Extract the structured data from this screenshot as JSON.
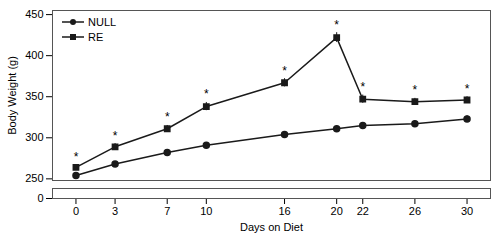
{
  "chart_data": [
    {
      "type": "line",
      "ylabel": "Body Weight (g)",
      "x": [
        0,
        3,
        7,
        10,
        16,
        20,
        22,
        26,
        30
      ],
      "xlim": [
        -1.8,
        31.8
      ],
      "ylim": [
        248,
        455
      ],
      "yticks": [
        250,
        300,
        350,
        400,
        450
      ],
      "tick_labels": "y",
      "legend": "upper left",
      "series": [
        {
          "name": "NULL",
          "color": "#1a1a1a",
          "marker": "circle",
          "values": [
            254,
            268,
            282,
            291,
            304,
            311,
            315,
            317,
            323
          ],
          "errors": [
            3,
            3,
            3,
            3,
            3,
            3,
            3,
            3,
            4
          ]
        },
        {
          "name": "RE",
          "color": "#1a1a1a",
          "marker": "square",
          "values": [
            264,
            289,
            311,
            338,
            367,
            422,
            347,
            344,
            346
          ],
          "errors": [
            3,
            4,
            4,
            5,
            5,
            6,
            5,
            4,
            4
          ]
        }
      ],
      "annotations": [
        {
          "x": 0,
          "y": 267,
          "text": "*"
        },
        {
          "x": 3,
          "y": 293,
          "text": "*"
        },
        {
          "x": 7,
          "y": 315,
          "text": "*"
        },
        {
          "x": 10,
          "y": 343,
          "text": "*"
        },
        {
          "x": 16,
          "y": 372,
          "text": "*"
        },
        {
          "x": 20,
          "y": 428,
          "text": "*"
        },
        {
          "x": 22,
          "y": 352,
          "text": "*"
        },
        {
          "x": 26,
          "y": 348,
          "text": "*"
        },
        {
          "x": 30,
          "y": 350,
          "text": "*"
        }
      ]
    },
    {
      "type": "axis",
      "xlabel": "Days on Diet",
      "xlim": [
        -1.8,
        31.8
      ],
      "xticks": [
        0,
        3,
        7,
        10,
        16,
        20,
        22,
        26,
        30
      ],
      "ylim": [
        0,
        5
      ],
      "yticks": [
        0
      ]
    }
  ]
}
